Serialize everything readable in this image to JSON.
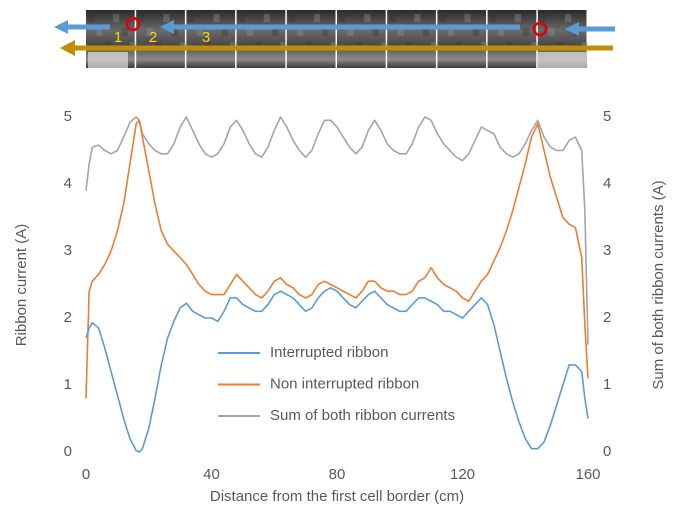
{
  "chart_data": {
    "type": "line",
    "y_label": "Ribbon current (A)",
    "y2_label": "Sum of both ribbon currents (A)",
    "x_label": "Distance from the first cell border (cm)",
    "annotations": [
      "1",
      "2",
      "3"
    ],
    "xlim": [
      0,
      160
    ],
    "xticks": [
      0,
      40,
      80,
      120,
      160
    ],
    "ylim": [
      0,
      5.5
    ],
    "yticks": [
      0,
      1,
      2,
      3,
      4,
      5
    ],
    "y2lim": [
      0,
      5.5
    ],
    "y2ticks": [
      0,
      1,
      2,
      3,
      4,
      5
    ],
    "grid": false,
    "legend": "center",
    "x": [
      0,
      1,
      2,
      4,
      6,
      8,
      10,
      12,
      14,
      16,
      17,
      18,
      20,
      22,
      24,
      26,
      28,
      30,
      32,
      34,
      36,
      38,
      40,
      42,
      44,
      46,
      48,
      50,
      52,
      54,
      56,
      58,
      60,
      62,
      64,
      66,
      68,
      70,
      72,
      74,
      76,
      78,
      80,
      82,
      84,
      86,
      88,
      90,
      92,
      94,
      96,
      98,
      100,
      102,
      104,
      106,
      108,
      110,
      112,
      114,
      116,
      118,
      120,
      122,
      124,
      126,
      128,
      130,
      132,
      134,
      136,
      138,
      140,
      142,
      144,
      146,
      148,
      150,
      152,
      154,
      156,
      158,
      159,
      160
    ],
    "series": [
      {
        "name": "Interrupted ribbon",
        "color": "#5b9bd5",
        "values": [
          1.7,
          1.85,
          1.93,
          1.85,
          1.55,
          1.2,
          0.85,
          0.5,
          0.2,
          0.02,
          0.0,
          0.05,
          0.35,
          0.8,
          1.3,
          1.7,
          1.95,
          2.15,
          2.22,
          2.1,
          2.05,
          2.0,
          2.0,
          1.95,
          2.1,
          2.3,
          2.3,
          2.2,
          2.15,
          2.1,
          2.1,
          2.2,
          2.35,
          2.4,
          2.35,
          2.3,
          2.2,
          2.1,
          2.15,
          2.3,
          2.4,
          2.45,
          2.4,
          2.3,
          2.2,
          2.15,
          2.25,
          2.35,
          2.4,
          2.3,
          2.2,
          2.15,
          2.1,
          2.1,
          2.2,
          2.3,
          2.3,
          2.25,
          2.2,
          2.1,
          2.1,
          2.05,
          2.0,
          2.1,
          2.2,
          2.3,
          2.2,
          1.9,
          1.5,
          1.1,
          0.75,
          0.45,
          0.2,
          0.05,
          0.05,
          0.15,
          0.4,
          0.7,
          1.0,
          1.3,
          1.3,
          1.2,
          0.8,
          0.5
        ]
      },
      {
        "name": "Non interrupted ribbon",
        "color": "#ed7d31",
        "values": [
          0.8,
          2.4,
          2.55,
          2.65,
          2.8,
          3.0,
          3.3,
          3.7,
          4.3,
          4.9,
          4.95,
          4.7,
          4.2,
          3.7,
          3.3,
          3.1,
          3.0,
          2.9,
          2.8,
          2.65,
          2.5,
          2.4,
          2.35,
          2.35,
          2.35,
          2.5,
          2.65,
          2.55,
          2.45,
          2.35,
          2.3,
          2.4,
          2.55,
          2.6,
          2.5,
          2.45,
          2.35,
          2.3,
          2.35,
          2.5,
          2.55,
          2.5,
          2.45,
          2.4,
          2.35,
          2.3,
          2.4,
          2.55,
          2.55,
          2.45,
          2.4,
          2.4,
          2.35,
          2.35,
          2.4,
          2.55,
          2.6,
          2.75,
          2.6,
          2.5,
          2.45,
          2.4,
          2.3,
          2.25,
          2.4,
          2.55,
          2.65,
          2.85,
          3.05,
          3.3,
          3.6,
          3.95,
          4.3,
          4.7,
          4.9,
          4.5,
          4.1,
          3.8,
          3.5,
          3.4,
          3.35,
          2.9,
          1.9,
          1.1
        ]
      },
      {
        "name": "Sum of both ribbon currents",
        "color": "#a5a5a5",
        "axis": "y2",
        "values": [
          3.9,
          4.3,
          4.55,
          4.58,
          4.5,
          4.45,
          4.5,
          4.7,
          4.92,
          5.0,
          4.95,
          4.75,
          4.6,
          4.5,
          4.45,
          4.45,
          4.6,
          4.85,
          5.0,
          4.8,
          4.6,
          4.45,
          4.4,
          4.45,
          4.6,
          4.85,
          4.95,
          4.8,
          4.6,
          4.45,
          4.4,
          4.55,
          4.8,
          5.0,
          4.85,
          4.65,
          4.5,
          4.4,
          4.5,
          4.75,
          4.95,
          4.95,
          4.85,
          4.7,
          4.55,
          4.45,
          4.55,
          4.8,
          4.95,
          4.8,
          4.6,
          4.5,
          4.45,
          4.45,
          4.6,
          4.85,
          5.0,
          4.95,
          4.75,
          4.6,
          4.5,
          4.4,
          4.35,
          4.45,
          4.65,
          4.85,
          4.8,
          4.75,
          4.55,
          4.45,
          4.4,
          4.45,
          4.6,
          4.8,
          4.95,
          4.7,
          4.55,
          4.5,
          4.5,
          4.65,
          4.7,
          4.5,
          3.6,
          1.6
        ]
      }
    ]
  }
}
